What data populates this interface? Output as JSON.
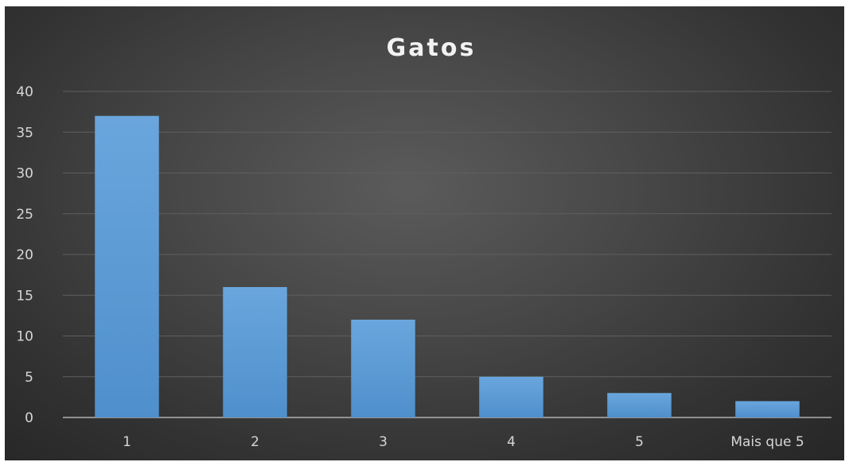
{
  "chart_data": {
    "type": "bar",
    "title": "Gatos",
    "categories": [
      "1",
      "2",
      "3",
      "4",
      "5",
      "Mais que 5"
    ],
    "series": [
      {
        "values": [
          37,
          16,
          12,
          5,
          3,
          2
        ]
      }
    ],
    "xlabel": "",
    "ylabel": "",
    "ylim": [
      0,
      40
    ],
    "yticks": [
      "0",
      "5",
      "10",
      "15",
      "20",
      "25",
      "30",
      "35",
      "40"
    ],
    "grid": true,
    "legend": "none",
    "colors": {
      "bar": "#5b9bd5",
      "background": "#404040"
    }
  }
}
